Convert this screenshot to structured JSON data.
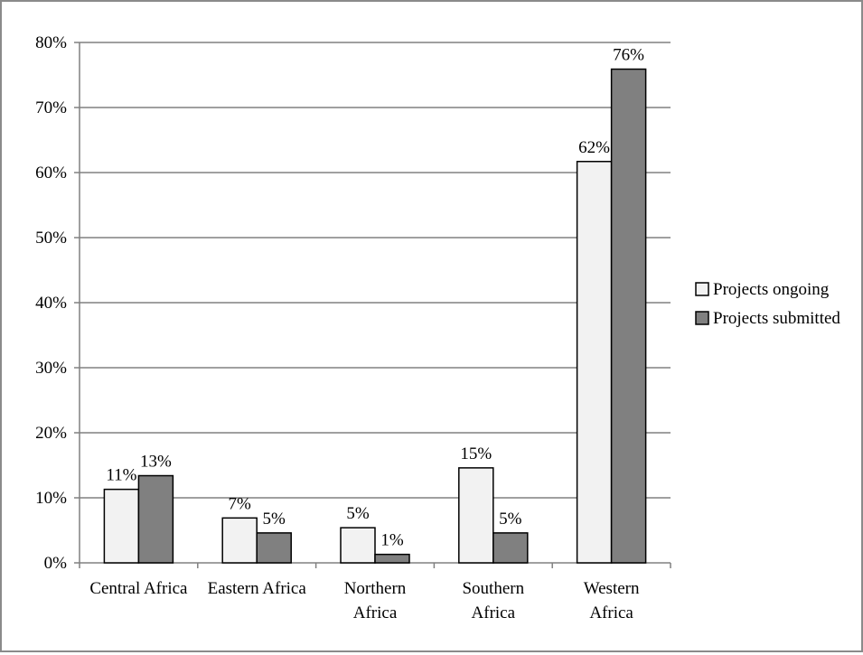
{
  "chart_data": {
    "type": "bar",
    "categories": [
      [
        "Central Africa"
      ],
      [
        "Eastern Africa"
      ],
      [
        "Northern",
        "Africa"
      ],
      [
        "Southern",
        "Africa"
      ],
      [
        "Western",
        "Africa"
      ]
    ],
    "series": [
      {
        "name": "Projects ongoing",
        "color": "#f2f2f2",
        "values": [
          11.3,
          6.9,
          5.4,
          14.6,
          61.7
        ],
        "labels": [
          "11%",
          "7%",
          "5%",
          "15%",
          "62%"
        ]
      },
      {
        "name": "Projects submitted",
        "color": "#808080",
        "values": [
          13.4,
          4.6,
          1.3,
          4.6,
          75.9
        ],
        "labels": [
          "13%",
          "5%",
          "1%",
          "5%",
          "76%"
        ]
      }
    ],
    "y_ticks": [
      "0%",
      "10%",
      "20%",
      "30%",
      "40%",
      "50%",
      "60%",
      "70%",
      "80%"
    ],
    "ylim": [
      0,
      80
    ],
    "grid": true,
    "legend_position": "right"
  }
}
